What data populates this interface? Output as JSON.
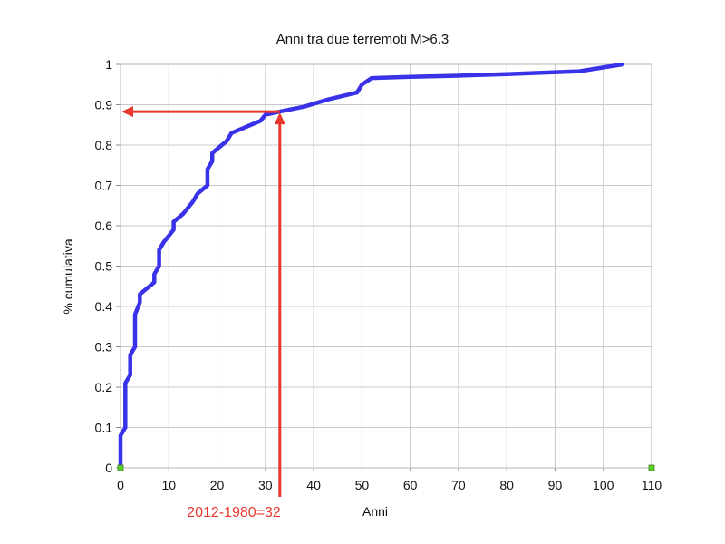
{
  "chart_data": {
    "type": "line",
    "title": "Anni tra due terremoti M>6.3",
    "xlabel": "Anni",
    "ylabel": "% cumulativa",
    "xlim": [
      0,
      110
    ],
    "ylim": [
      0,
      1
    ],
    "x_ticks": [
      "0",
      "10",
      "20",
      "30",
      "40",
      "50",
      "60",
      "70",
      "80",
      "90",
      "100",
      "110"
    ],
    "y_ticks": [
      "0",
      "0.1",
      "0.2",
      "0.3",
      "0.4",
      "0.5",
      "0.6",
      "0.7",
      "0.8",
      "0.9",
      "1"
    ],
    "grid": true,
    "series": [
      {
        "color": "#3a32e8",
        "points": [
          [
            0,
            0.01
          ],
          [
            0,
            0.08
          ],
          [
            1,
            0.1
          ],
          [
            1,
            0.21
          ],
          [
            2,
            0.23
          ],
          [
            2,
            0.28
          ],
          [
            3,
            0.3
          ],
          [
            3,
            0.38
          ],
          [
            4,
            0.41
          ],
          [
            4,
            0.43
          ],
          [
            5,
            0.44
          ],
          [
            7,
            0.46
          ],
          [
            7,
            0.48
          ],
          [
            8,
            0.5
          ],
          [
            8,
            0.54
          ],
          [
            9,
            0.56
          ],
          [
            11,
            0.59
          ],
          [
            11,
            0.61
          ],
          [
            13,
            0.63
          ],
          [
            15,
            0.66
          ],
          [
            16,
            0.68
          ],
          [
            18,
            0.7
          ],
          [
            18,
            0.74
          ],
          [
            19,
            0.76
          ],
          [
            19,
            0.78
          ],
          [
            20,
            0.79
          ],
          [
            22,
            0.81
          ],
          [
            23,
            0.83
          ],
          [
            25,
            0.84
          ],
          [
            28,
            0.855
          ],
          [
            29,
            0.86
          ],
          [
            30,
            0.875
          ],
          [
            33,
            0.883
          ],
          [
            38,
            0.895
          ],
          [
            43,
            0.913
          ],
          [
            49,
            0.93
          ],
          [
            50,
            0.95
          ],
          [
            52,
            0.966
          ],
          [
            60,
            0.969
          ],
          [
            70,
            0.972
          ],
          [
            80,
            0.976
          ],
          [
            95,
            0.983
          ],
          [
            104,
            1.0
          ]
        ]
      }
    ],
    "markers": [
      {
        "x": 0,
        "y": 0,
        "color": "#5ad12c"
      },
      {
        "x": 110,
        "y": 0,
        "color": "#5ad12c"
      }
    ],
    "annotation": {
      "text": "2012-1980=32",
      "color": "#e8372c",
      "x": 33,
      "y": 0.883
    }
  }
}
